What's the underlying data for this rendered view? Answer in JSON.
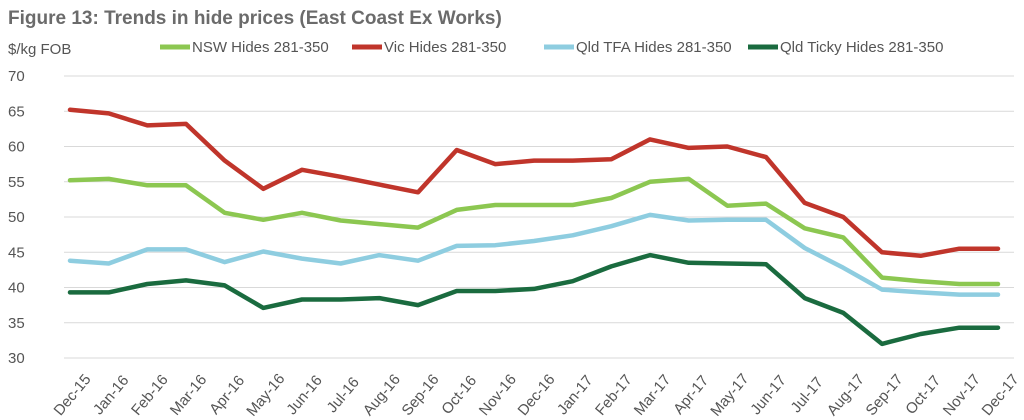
{
  "chart_data": {
    "type": "line",
    "title": "Figure 13: Trends in hide prices (East Coast Ex Works)",
    "ylabel": "$/kg FOB",
    "xlabel": "",
    "ylim": [
      30,
      70
    ],
    "yticks": [
      30,
      35,
      40,
      45,
      50,
      55,
      60,
      65,
      70
    ],
    "grid": true,
    "legend_position": "top",
    "categories": [
      "Dec-15",
      "Jan-16",
      "Feb-16",
      "Mar-16",
      "Apr-16",
      "May-16",
      "Jun-16",
      "Jul-16",
      "Aug-16",
      "Sep-16",
      "Oct-16",
      "Nov-16",
      "Dec-16",
      "Jan-17",
      "Feb-17",
      "Mar-17",
      "Apr-17",
      "May-17",
      "Jun-17",
      "Jul-17",
      "Aug-17",
      "Sep-17",
      "Oct-17",
      "Nov-17",
      "Dec-17"
    ],
    "series": [
      {
        "name": "NSW Hides 281-350",
        "color": "#8cc751",
        "values": [
          55.2,
          55.4,
          54.5,
          54.5,
          50.6,
          49.6,
          50.6,
          49.5,
          49.0,
          48.5,
          51.0,
          51.7,
          51.7,
          51.7,
          52.7,
          55.0,
          55.4,
          51.6,
          51.9,
          48.4,
          47.1,
          41.4,
          40.9,
          40.5,
          40.5
        ]
      },
      {
        "name": "Vic Hides 281-350",
        "color": "#c0352b",
        "values": [
          65.2,
          64.7,
          63.0,
          63.2,
          58.0,
          54.0,
          56.7,
          55.7,
          54.6,
          53.5,
          59.5,
          57.5,
          58.0,
          58.0,
          58.2,
          61.0,
          59.8,
          60.0,
          58.5,
          52.0,
          50.0,
          45.0,
          44.5,
          45.5,
          45.5
        ]
      },
      {
        "name": "Qld TFA Hides 281-350",
        "color": "#8ecde0",
        "values": [
          43.8,
          43.4,
          45.4,
          45.4,
          43.6,
          45.1,
          44.1,
          43.4,
          44.6,
          43.8,
          45.9,
          46.0,
          46.6,
          47.4,
          48.7,
          50.3,
          49.5,
          49.6,
          49.6,
          45.6,
          42.8,
          39.7,
          39.3,
          39.0,
          39.0
        ]
      },
      {
        "name": "Qld Ticky Hides 281-350",
        "color": "#1a6b3f",
        "values": [
          39.3,
          39.3,
          40.5,
          41.0,
          40.3,
          37.1,
          38.3,
          38.3,
          38.5,
          37.5,
          39.5,
          39.5,
          39.8,
          40.9,
          43.0,
          44.6,
          43.5,
          43.4,
          43.3,
          38.5,
          36.4,
          32.0,
          33.4,
          34.3,
          34.3
        ]
      }
    ]
  }
}
